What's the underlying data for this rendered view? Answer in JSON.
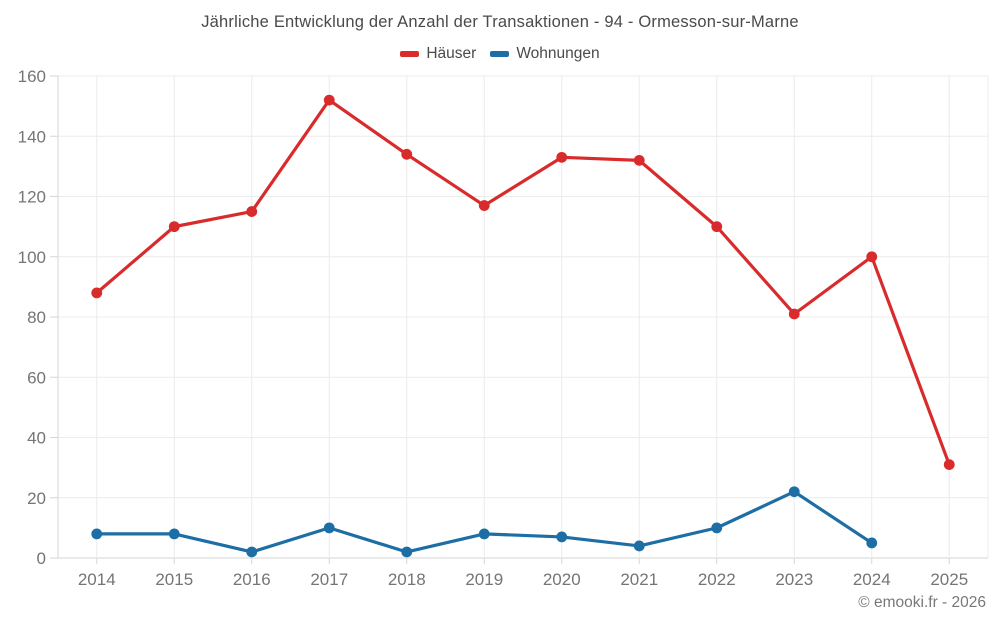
{
  "chart_data": {
    "type": "line",
    "title": "Jährliche Entwicklung der Anzahl der Transaktionen - 94 - Ormesson-sur-Marne",
    "categories": [
      "2014",
      "2015",
      "2016",
      "2017",
      "2018",
      "2019",
      "2020",
      "2021",
      "2022",
      "2023",
      "2024",
      "2025"
    ],
    "series": [
      {
        "name": "Häuser",
        "color": "#d92b2b",
        "values": [
          88,
          110,
          115,
          152,
          134,
          117,
          133,
          132,
          110,
          81,
          100,
          31
        ]
      },
      {
        "name": "Wohnungen",
        "color": "#1c6ea4",
        "values": [
          8,
          8,
          2,
          10,
          2,
          8,
          7,
          4,
          10,
          22,
          5,
          null
        ]
      }
    ],
    "xlabel": "",
    "ylabel": "",
    "ylim": [
      0,
      160
    ],
    "ytick_step": 20,
    "grid": true,
    "legend_position": "top",
    "grid_color": "#ececec",
    "axis_color": "#d6d6d6",
    "tick_label_color": "#757575"
  },
  "footer": {
    "credit": "© emooki.fr - 2026"
  }
}
